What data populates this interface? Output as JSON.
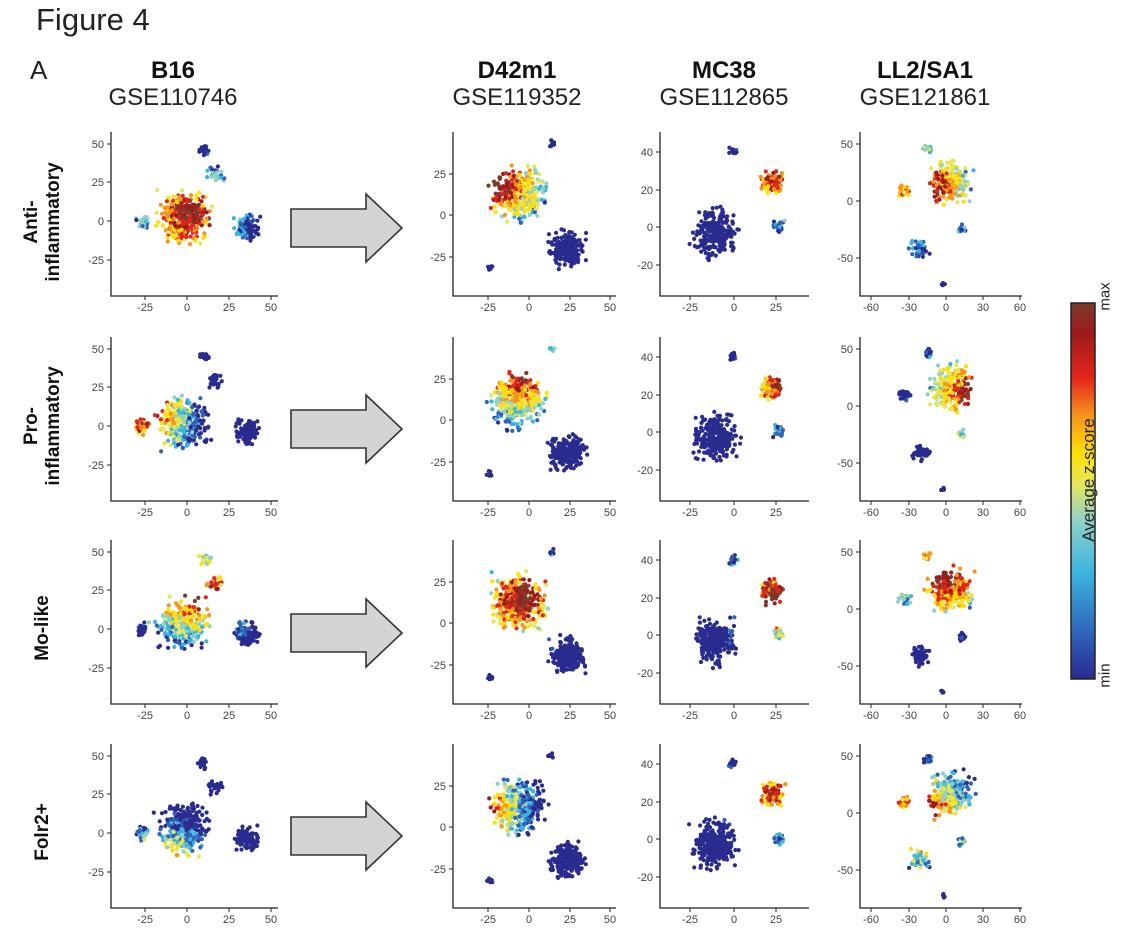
{
  "figure": {
    "title": "Figure 4",
    "panel_letter": "A",
    "columns": [
      {
        "name": "B16",
        "accession": "GSE110746"
      },
      {
        "name": "D42m1",
        "accession": "GSE119352"
      },
      {
        "name": "MC38",
        "accession": "GSE112865"
      },
      {
        "name": "LL2/SA1",
        "accession": "GSE121861"
      }
    ],
    "rows": [
      {
        "label_line1": "Anti-",
        "label_line2": "inflammatory"
      },
      {
        "label_line1": "Pro-",
        "label_line2": "inflammatory"
      },
      {
        "label_line1": "Mo-like",
        "label_line2": ""
      },
      {
        "label_line1": "Folr2+",
        "label_line2": ""
      }
    ],
    "colorbar": {
      "title": "Average z-score",
      "max_label": "max",
      "min_label": "min",
      "colors": [
        "#2a2b8f",
        "#2f63b8",
        "#3bb4e0",
        "#8fd1c8",
        "#e6e65a",
        "#ffe000",
        "#f7941d",
        "#e3261b",
        "#9c1b1b",
        "#7a3b2a"
      ]
    }
  },
  "chart_data": [
    {
      "type": "scatter",
      "dataset": "B16",
      "xlim": [
        -45,
        52
      ],
      "ylim": [
        -45,
        52
      ],
      "x_ticks": [
        "-25",
        "0",
        "25",
        "50"
      ],
      "y_ticks": [
        "50",
        "25",
        "0",
        "-25"
      ]
    },
    {
      "type": "scatter",
      "dataset": "D42m1",
      "xlim": [
        -45,
        52
      ],
      "ylim": [
        -45,
        45
      ],
      "x_ticks": [
        "-25",
        "0",
        "25",
        "50"
      ],
      "y_ticks": [
        "25",
        "0",
        "-25"
      ]
    },
    {
      "type": "scatter",
      "dataset": "MC38",
      "xlim": [
        -40,
        45
      ],
      "ylim": [
        -35,
        48
      ],
      "x_ticks": [
        "-25",
        "0",
        "25"
      ],
      "y_ticks": [
        "40",
        "20",
        "0",
        "-20"
      ]
    },
    {
      "type": "scatter",
      "dataset": "LL2/SA1",
      "xlim": [
        -65,
        62
      ],
      "ylim": [
        -82,
        55
      ],
      "x_ticks": [
        "-60",
        "-30",
        "0",
        "30",
        "60"
      ],
      "y_ticks": [
        "50",
        "0",
        "-50"
      ]
    }
  ]
}
